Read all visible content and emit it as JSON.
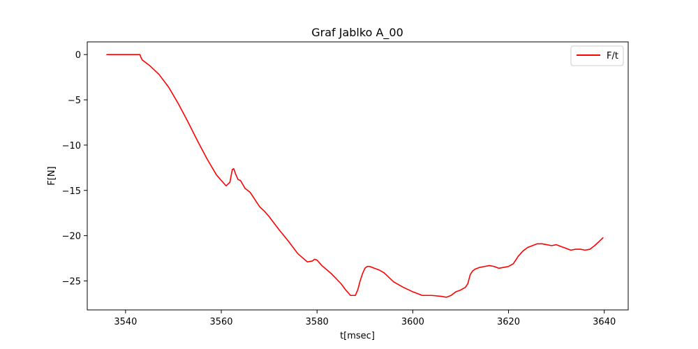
{
  "chart_data": {
    "type": "line",
    "title": "Graf Jablko A_00",
    "xlabel": "t[msec]",
    "ylabel": "F[N]",
    "xlim": [
      3532,
      3645
    ],
    "ylim": [
      -28.2,
      1.4
    ],
    "xticks": [
      3540,
      3560,
      3580,
      3600,
      3620,
      3640
    ],
    "yticks": [
      0,
      -5,
      -10,
      -15,
      -20,
      -25
    ],
    "ytick_labels": [
      "0",
      "−5",
      "−10",
      "−15",
      "−20",
      "−25"
    ],
    "grid": false,
    "legend_position": "top-right",
    "series": [
      {
        "name": "F/t",
        "color": "#ff0000",
        "x": [
          3536,
          3540,
          3543,
          3543.2,
          3543.5,
          3545,
          3547,
          3549,
          3551,
          3553,
          3555,
          3557,
          3559,
          3561,
          3561.8,
          3562.3,
          3562.6,
          3563,
          3563.5,
          3564,
          3565,
          3566,
          3567,
          3568,
          3569,
          3570,
          3571,
          3572,
          3574,
          3576,
          3578,
          3579,
          3579.5,
          3580,
          3581,
          3583,
          3585,
          3586,
          3587,
          3588,
          3588.5,
          3589,
          3589.5,
          3590,
          3590.5,
          3591,
          3592,
          3593,
          3594,
          3595,
          3596,
          3598,
          3600,
          3602,
          3604,
          3606,
          3607,
          3608,
          3609,
          3610,
          3611,
          3611.5,
          3612,
          3612.5,
          3613,
          3614,
          3615,
          3616,
          3617,
          3618,
          3619,
          3620,
          3621,
          3621.5,
          3622,
          3623,
          3624,
          3625,
          3626,
          3627,
          3628,
          3629,
          3630,
          3631,
          3632,
          3633,
          3634,
          3635,
          3636,
          3637,
          3638,
          3639,
          3639.8
        ],
        "values": [
          0,
          0,
          0,
          -0.3,
          -0.6,
          -1.2,
          -2.2,
          -3.6,
          -5.4,
          -7.4,
          -9.5,
          -11.5,
          -13.3,
          -14.5,
          -14.1,
          -12.7,
          -12.6,
          -13.2,
          -13.8,
          -13.9,
          -14.8,
          -15.2,
          -16.0,
          -16.8,
          -17.3,
          -17.9,
          -18.6,
          -19.3,
          -20.6,
          -22.0,
          -22.9,
          -22.8,
          -22.6,
          -22.7,
          -23.3,
          -24.2,
          -25.3,
          -26.0,
          -26.6,
          -26.6,
          -26.0,
          -25.0,
          -24.2,
          -23.6,
          -23.4,
          -23.4,
          -23.6,
          -23.8,
          -24.1,
          -24.6,
          -25.1,
          -25.7,
          -26.2,
          -26.6,
          -26.6,
          -26.7,
          -26.8,
          -26.6,
          -26.2,
          -26.0,
          -25.7,
          -25.3,
          -24.3,
          -23.9,
          -23.7,
          -23.5,
          -23.4,
          -23.3,
          -23.4,
          -23.6,
          -23.5,
          -23.4,
          -23.1,
          -22.7,
          -22.3,
          -21.7,
          -21.3,
          -21.1,
          -20.9,
          -20.9,
          -21.0,
          -21.1,
          -21.0,
          -21.2,
          -21.4,
          -21.6,
          -21.5,
          -21.5,
          -21.6,
          -21.5,
          -21.1,
          -20.6,
          -20.2
        ]
      }
    ]
  }
}
